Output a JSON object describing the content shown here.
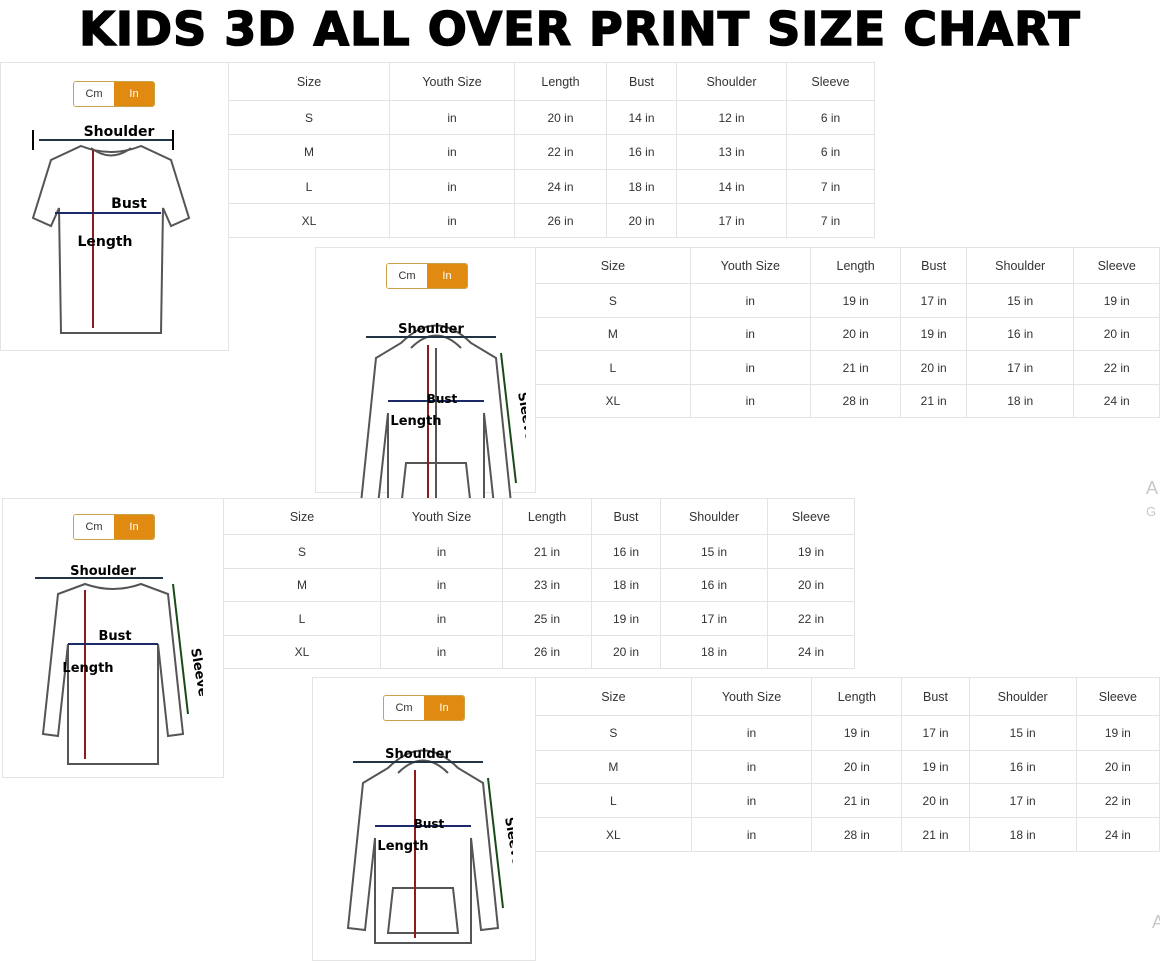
{
  "title": "KIDS 3D ALL OVER PRINT SIZE CHART",
  "accent_color": "#e08a12",
  "toggle": {
    "cm": "Cm",
    "in": "In",
    "selected": "In"
  },
  "headers": [
    "Size",
    "Youth Size",
    "Length",
    "Bust",
    "Shoulder",
    "Sleeve"
  ],
  "panels": [
    {
      "garment": "t-shirt",
      "labels": {
        "shoulder": "Shoulder",
        "bust": "Bust",
        "length": "Length"
      },
      "rows": [
        [
          "S",
          "in",
          "20 in",
          "14 in",
          "12 in",
          "6 in"
        ],
        [
          "M",
          "in",
          "22 in",
          "16 in",
          "13 in",
          "6 in"
        ],
        [
          "L",
          "in",
          "24 in",
          "18 in",
          "14 in",
          "7 in"
        ],
        [
          "XL",
          "in",
          "26 in",
          "20 in",
          "17 in",
          "7 in"
        ]
      ]
    },
    {
      "garment": "zip-hoodie",
      "labels": {
        "shoulder": "Shoulder",
        "bust": "Bust",
        "length": "Length",
        "sleeve": "Sleeve"
      },
      "rows": [
        [
          "S",
          "in",
          "19 in",
          "17 in",
          "15 in",
          "19 in"
        ],
        [
          "M",
          "in",
          "20 in",
          "19 in",
          "16 in",
          "20 in"
        ],
        [
          "L",
          "in",
          "21 in",
          "20 in",
          "17 in",
          "22 in"
        ],
        [
          "XL",
          "in",
          "28 in",
          "21 in",
          "18 in",
          "24 in"
        ]
      ]
    },
    {
      "garment": "long-sleeve-shirt",
      "labels": {
        "shoulder": "Shoulder",
        "bust": "Bust",
        "length": "Length",
        "sleeve": "Sleeve"
      },
      "rows": [
        [
          "S",
          "in",
          "21 in",
          "16 in",
          "15 in",
          "19 in"
        ],
        [
          "M",
          "in",
          "23 in",
          "18 in",
          "16 in",
          "20 in"
        ],
        [
          "L",
          "in",
          "25 in",
          "19 in",
          "17 in",
          "22 in"
        ],
        [
          "XL",
          "in",
          "26 in",
          "20 in",
          "18 in",
          "24 in"
        ]
      ]
    },
    {
      "garment": "pullover-hoodie",
      "labels": {
        "shoulder": "Shoulder",
        "bust": "Bust",
        "length": "Length",
        "sleeve": "Sleeve"
      },
      "rows": [
        [
          "S",
          "in",
          "19 in",
          "17 in",
          "15 in",
          "19 in"
        ],
        [
          "M",
          "in",
          "20 in",
          "19 in",
          "16 in",
          "20 in"
        ],
        [
          "L",
          "in",
          "21 in",
          "20 in",
          "17 in",
          "22 in"
        ],
        [
          "XL",
          "in",
          "28 in",
          "21 in",
          "18 in",
          "24 in"
        ]
      ]
    }
  ],
  "watermark": {
    "line1": "A",
    "line2": "G"
  }
}
